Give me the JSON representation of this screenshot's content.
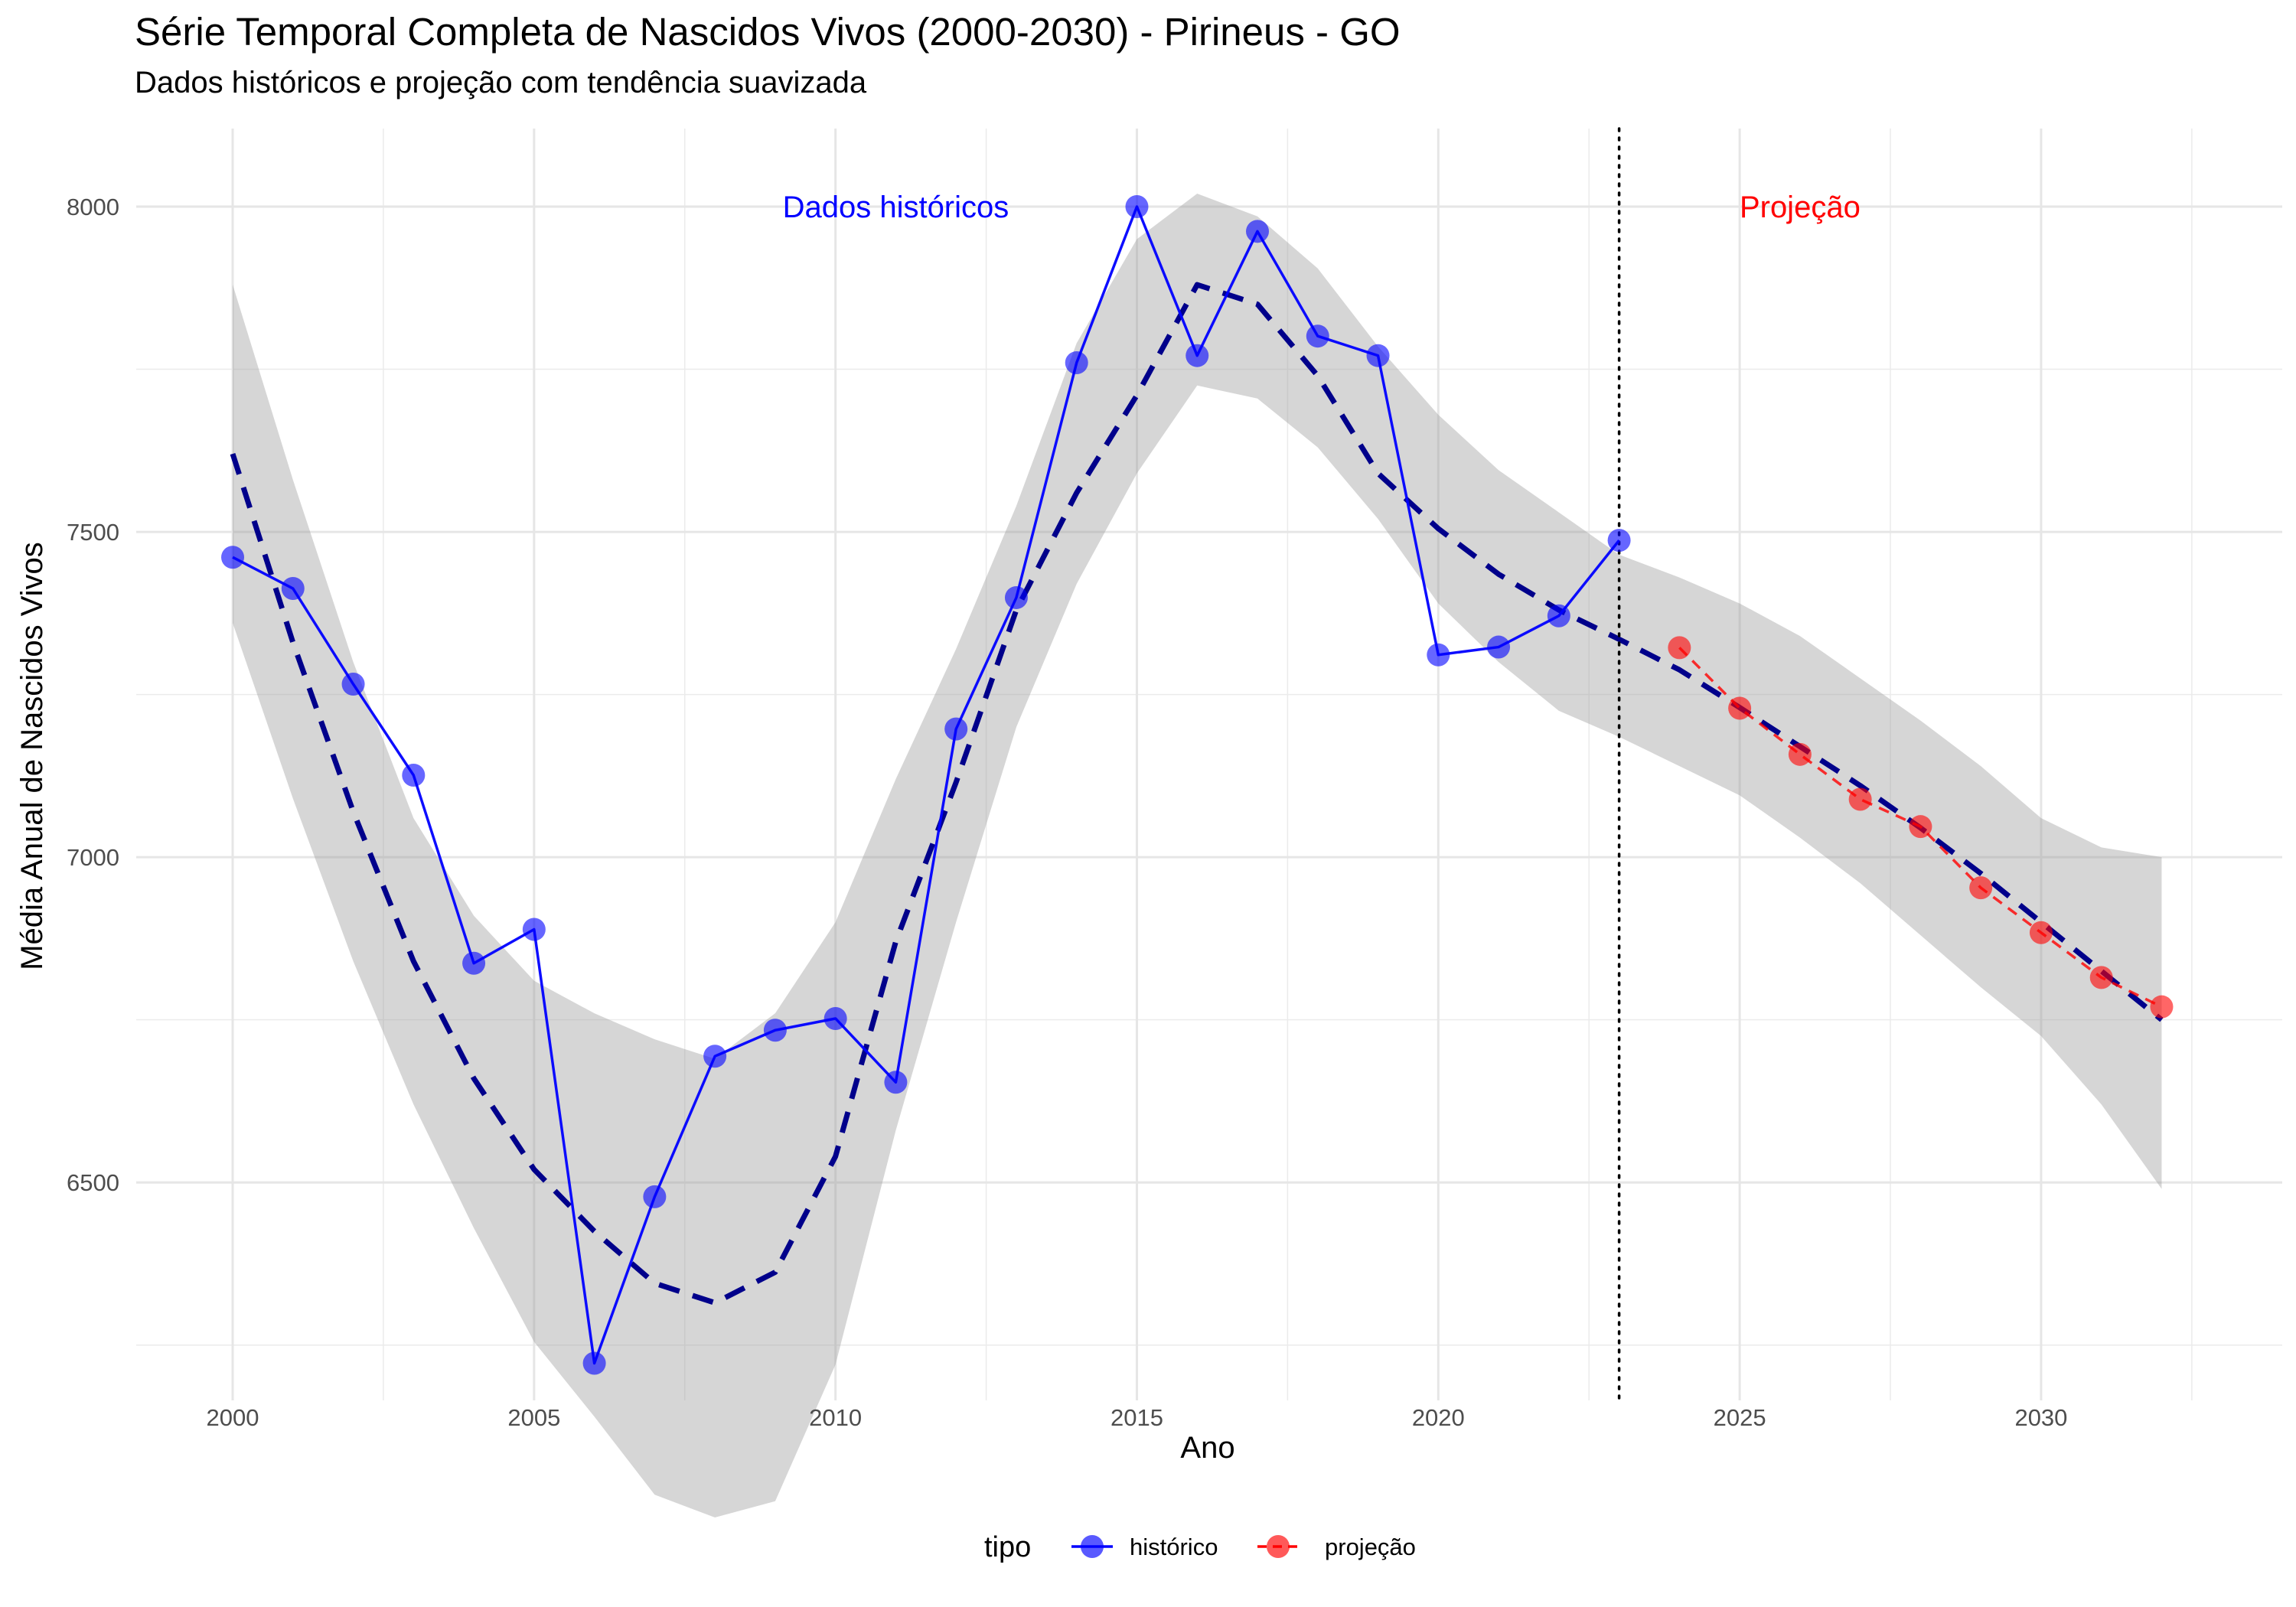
{
  "chart_data": {
    "type": "line",
    "title": "Série Temporal Completa de Nascidos Vivos (2000-2030) -  Pirineus - GO",
    "subtitle": "Dados históricos e projeção com tendência suavizada",
    "xlabel": "Ano",
    "ylabel": "Média Anual de Nascidos Vivos",
    "xlim": [
      1998.4,
      2034.0
    ],
    "ylim": [
      6165,
      8120
    ],
    "x_ticks": [
      2000,
      2005,
      2010,
      2015,
      2020,
      2025,
      2030
    ],
    "y_ticks": [
      6500,
      7000,
      7500,
      8000
    ],
    "grid": true,
    "legend": {
      "position": "bottom",
      "title": "tipo",
      "entries": [
        "histórico",
        "projeção"
      ]
    },
    "annotations": [
      {
        "text": "Dados históricos",
        "x": 2011,
        "y": 8000,
        "color": "#0000ff"
      },
      {
        "text": "Projeção",
        "x": 2026,
        "y": 8000,
        "color": "#ff0000"
      }
    ],
    "vline": {
      "x": 2023,
      "style": "dotted"
    },
    "series": [
      {
        "name": "histórico",
        "color": "#0000ff",
        "x": [
          2000,
          2001,
          2002,
          2003,
          2004,
          2005,
          2006,
          2007,
          2008,
          2009,
          2010,
          2011,
          2012,
          2013,
          2014,
          2015,
          2016,
          2017,
          2018,
          2019,
          2020,
          2021,
          2022,
          2023
        ],
        "y": [
          7461,
          7413,
          7266,
          7126,
          6837,
          6889,
          6222,
          6478,
          6694,
          6734,
          6752,
          6654,
          7197,
          7399,
          7760,
          8000,
          7771,
          7962,
          7801,
          7771,
          7311,
          7323,
          7371,
          7487
        ]
      },
      {
        "name": "projeção",
        "color": "#ff0000",
        "x": [
          2024,
          2025,
          2026,
          2027,
          2028,
          2029,
          2030,
          2031,
          2032
        ],
        "y": [
          7322,
          7229,
          7158,
          7089,
          7047,
          6953,
          6884,
          6815,
          6770
        ]
      }
    ],
    "trend": {
      "color": "#00008b",
      "style": "dashed",
      "x": [
        2000,
        2001,
        2002,
        2003,
        2004,
        2005,
        2006,
        2007,
        2008,
        2009,
        2010,
        2011,
        2012,
        2013,
        2014,
        2015,
        2016,
        2017,
        2018,
        2019,
        2020,
        2021,
        2022,
        2023,
        2024,
        2025,
        2026,
        2027,
        2028,
        2029,
        2030,
        2031,
        2032
      ],
      "y": [
        7620,
        7330,
        7070,
        6840,
        6660,
        6520,
        6425,
        6345,
        6315,
        6362,
        6540,
        6870,
        7115,
        7380,
        7560,
        7710,
        7880,
        7850,
        7740,
        7590,
        7505,
        7435,
        7380,
        7335,
        7288,
        7230,
        7170,
        7110,
        7045,
        6975,
        6900,
        6825,
        6750
      ],
      "band_upper": [
        7880,
        7580,
        7300,
        7060,
        6910,
        6810,
        6760,
        6720,
        6690,
        6760,
        6900,
        7120,
        7320,
        7540,
        7790,
        7950,
        8020,
        7985,
        7905,
        7785,
        7680,
        7595,
        7530,
        7465,
        7430,
        7390,
        7340,
        7275,
        7210,
        7140,
        7060,
        7015,
        7000
      ],
      "band_lower": [
        7360,
        7090,
        6840,
        6620,
        6430,
        6255,
        6140,
        6020,
        5985,
        6010,
        6220,
        6580,
        6900,
        7200,
        7420,
        7590,
        7725,
        7705,
        7630,
        7520,
        7390,
        7300,
        7225,
        7185,
        7140,
        7095,
        7030,
        6960,
        6880,
        6800,
        6725,
        6620,
        6490
      ]
    }
  }
}
